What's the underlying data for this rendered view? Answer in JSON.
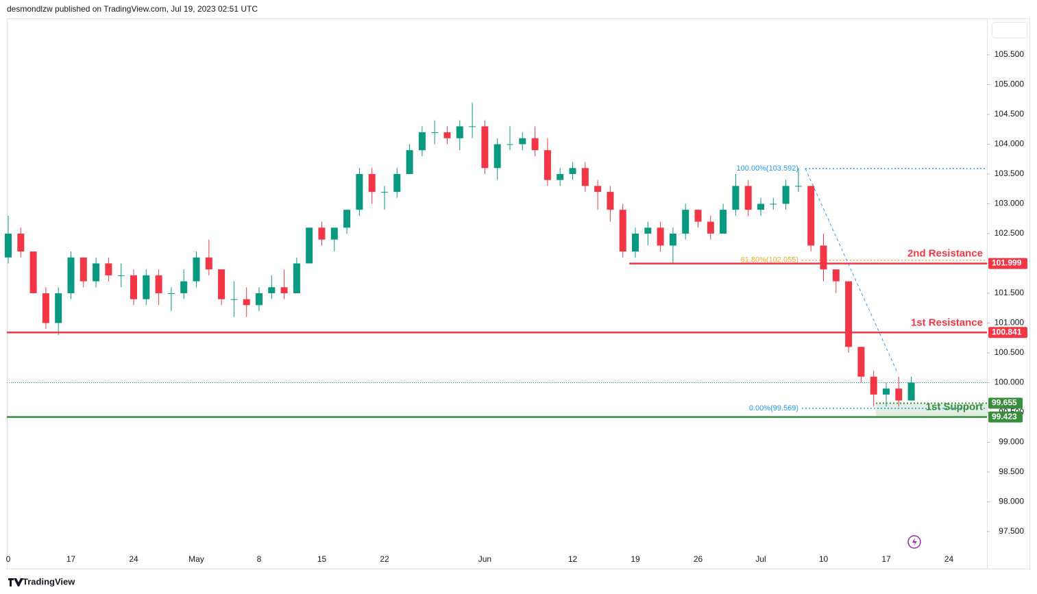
{
  "header": {
    "text": "desmondlzw published on TradingView.com, Jul 19, 2023 02:51 UTC"
  },
  "footer": {
    "brand": "TradingView"
  },
  "chart_data": {
    "type": "candlestick",
    "categories": [
      "0",
      null,
      null,
      null,
      null,
      "17",
      null,
      null,
      null,
      null,
      "24",
      null,
      null,
      null,
      null,
      "May",
      null,
      null,
      null,
      null,
      "8",
      null,
      null,
      null,
      null,
      "15",
      null,
      null,
      null,
      null,
      "22",
      null,
      null,
      null,
      null,
      null,
      null,
      null,
      "Jun",
      null,
      null,
      null,
      null,
      null,
      null,
      "12",
      null,
      null,
      null,
      null,
      "19",
      null,
      null,
      null,
      null,
      "26",
      null,
      null,
      null,
      null,
      "Jul",
      null,
      null,
      null,
      null,
      "10",
      null,
      null,
      null,
      null,
      "17",
      null,
      null,
      null,
      null,
      "24"
    ],
    "open": [
      102.1,
      102.5,
      102.2,
      101.5,
      101.0,
      101.5,
      102.1,
      101.7,
      102.0,
      101.8,
      101.8,
      101.4,
      101.8,
      101.5,
      101.5,
      101.7,
      102.1,
      101.9,
      101.4,
      101.4,
      101.3,
      101.5,
      101.6,
      101.5,
      102.0,
      102.6,
      102.4,
      102.6,
      102.9,
      103.5,
      103.2,
      103.2,
      103.5,
      103.9,
      104.2,
      104.2,
      104.1,
      104.3,
      104.3,
      103.6,
      104.0,
      104.0,
      104.1,
      103.9,
      103.4,
      103.5,
      103.6,
      103.3,
      103.2,
      102.9,
      102.2,
      102.5,
      102.6,
      102.3,
      102.5,
      102.9,
      102.7,
      102.5,
      102.9,
      103.3,
      102.9,
      103.0,
      103.0,
      103.3,
      103.3,
      102.3,
      101.9,
      101.7,
      100.6,
      100.1,
      99.8,
      99.9,
      99.7,
      null,
      null,
      null
    ],
    "high": [
      102.8,
      102.6,
      102.2,
      101.6,
      101.6,
      102.2,
      102.1,
      102.1,
      102.1,
      102.0,
      101.9,
      101.9,
      101.9,
      101.6,
      101.9,
      102.2,
      102.4,
      101.9,
      101.7,
      101.6,
      101.6,
      101.8,
      101.9,
      102.1,
      102.6,
      102.7,
      102.6,
      102.9,
      103.6,
      103.6,
      103.3,
      103.6,
      104.0,
      104.3,
      104.4,
      104.3,
      104.4,
      104.7,
      104.4,
      104.1,
      104.3,
      104.2,
      104.3,
      104.1,
      103.6,
      103.7,
      103.7,
      103.4,
      103.3,
      103.0,
      102.6,
      102.7,
      102.7,
      102.6,
      103.0,
      102.9,
      102.8,
      103.0,
      103.5,
      103.4,
      103.1,
      103.1,
      103.4,
      103.6,
      103.3,
      102.5,
      101.9,
      101.7,
      100.6,
      100.2,
      100.0,
      100.1,
      100.1,
      null,
      null,
      null
    ],
    "low": [
      102.0,
      102.1,
      101.5,
      100.9,
      100.8,
      101.4,
      101.6,
      101.6,
      101.7,
      101.6,
      101.3,
      101.3,
      101.3,
      101.2,
      101.4,
      101.6,
      101.8,
      101.3,
      101.1,
      101.1,
      101.2,
      101.4,
      101.4,
      101.5,
      102.0,
      102.3,
      102.2,
      102.5,
      102.8,
      103.0,
      102.9,
      103.1,
      103.5,
      103.8,
      104.0,
      104.0,
      103.9,
      104.1,
      103.5,
      103.4,
      103.9,
      103.9,
      103.8,
      103.3,
      103.3,
      103.4,
      103.2,
      102.9,
      102.7,
      102.1,
      102.1,
      102.3,
      102.2,
      102.0,
      102.4,
      102.6,
      102.4,
      102.5,
      102.8,
      102.8,
      102.8,
      102.9,
      102.9,
      103.2,
      102.2,
      101.7,
      101.5,
      100.5,
      100.0,
      99.6,
      99.6,
      99.6,
      99.7,
      null,
      null,
      null
    ],
    "close": [
      102.5,
      102.2,
      101.5,
      101.0,
      101.5,
      102.1,
      101.7,
      102.0,
      101.8,
      101.8,
      101.4,
      101.8,
      101.5,
      101.5,
      101.7,
      102.1,
      101.9,
      101.4,
      101.4,
      101.3,
      101.5,
      101.6,
      101.5,
      102.0,
      102.6,
      102.4,
      102.6,
      102.9,
      103.5,
      103.2,
      103.2,
      103.5,
      103.9,
      104.2,
      104.2,
      104.1,
      104.3,
      104.3,
      103.6,
      104.0,
      104.0,
      104.1,
      103.9,
      103.4,
      103.5,
      103.6,
      103.3,
      103.2,
      102.9,
      102.2,
      102.5,
      102.6,
      102.3,
      102.5,
      102.9,
      102.7,
      102.5,
      102.9,
      103.3,
      102.9,
      103.0,
      103.0,
      103.3,
      103.3,
      102.3,
      101.9,
      101.7,
      100.6,
      100.1,
      99.8,
      99.9,
      99.7,
      100.0,
      null,
      null,
      null
    ],
    "up_color": "#089981",
    "down_color": "#f23645",
    "ylim": [
      96.879,
      106.109
    ],
    "yticks": [
      {
        "value": 97.5,
        "label": "97.500"
      },
      {
        "value": 98,
        "label": "98.000"
      },
      {
        "value": 98.5,
        "label": "98.500"
      },
      {
        "value": 99,
        "label": "99.000"
      },
      {
        "value": 99.5,
        "label": "99.500"
      },
      {
        "value": 100,
        "label": "100.000"
      },
      {
        "value": 100.5,
        "label": "100.500"
      },
      {
        "value": 101,
        "label": "101.000"
      },
      {
        "value": 101.5,
        "label": "101.500"
      },
      {
        "value": 102,
        "label": "102.000"
      },
      {
        "value": 102.5,
        "label": "102.500"
      },
      {
        "value": 103,
        "label": "103.000"
      },
      {
        "value": 103.5,
        "label": "103.500"
      },
      {
        "value": 104,
        "label": "104.000"
      },
      {
        "value": 104.5,
        "label": "104.500"
      },
      {
        "value": 105,
        "label": "105.000"
      },
      {
        "value": 105.5,
        "label": "105.500"
      }
    ],
    "levels": [
      {
        "label": "2nd Resistance",
        "value": 101.999,
        "color": "#f23645"
      },
      {
        "label": "1st Resistance",
        "value": 100.841,
        "color": "#f23645"
      },
      {
        "label": "1st Support",
        "value": 99.423,
        "color": "#388e3c"
      }
    ],
    "support_zone": {
      "value": 99.655,
      "color": "#388e3c"
    },
    "fib": [
      {
        "label": "100.00%(103.592)",
        "value": 103.592,
        "color": "#2196f3"
      },
      {
        "label": "61.80%(102.055)",
        "value": 102.055,
        "color": "#f5a623"
      },
      {
        "label": "0.00%(99.569)",
        "value": 99.569,
        "color": "#2196f3"
      }
    ],
    "trend_line": {
      "values": [
        103.592,
        100.15
      ],
      "color": "#2196f3"
    }
  }
}
